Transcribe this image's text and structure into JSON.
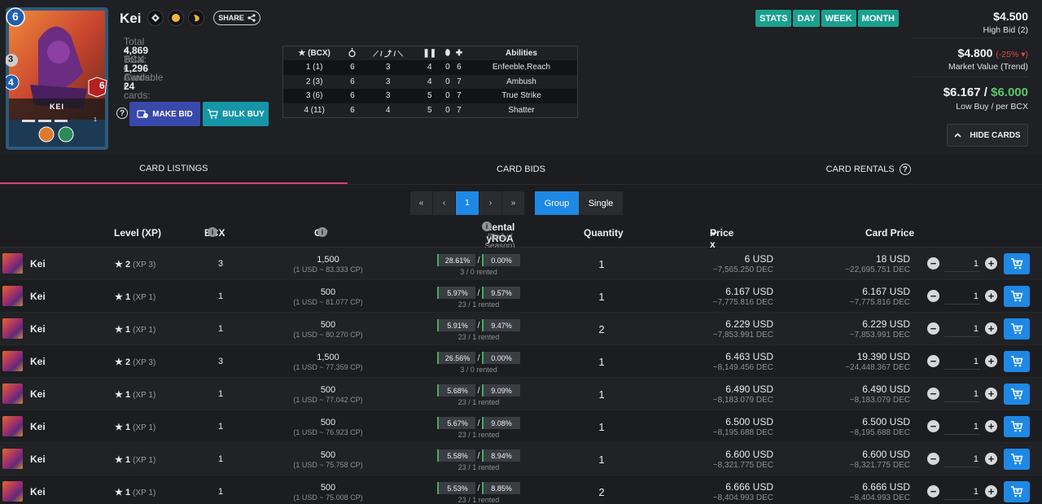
{
  "card": {
    "name": "Kei",
    "image_label": "KEI",
    "mana": "6",
    "armor": "3",
    "attack": "4",
    "health": "6",
    "level": "1"
  },
  "header": {
    "share_label": "SHARE",
    "stats": [
      {
        "label": "Total BCX:",
        "value": "4,869"
      },
      {
        "label": "Total Cards:",
        "value": "1,296"
      },
      {
        "label": "Available cards:",
        "value": "24"
      }
    ],
    "make_bid_label": "MAKE BID",
    "bulk_buy_label": "BULK BUY"
  },
  "level_table": {
    "headers": [
      "(BCX)",
      "",
      "",
      "",
      "",
      "",
      "Abilities"
    ],
    "rows": [
      [
        "1 (1)",
        "6",
        "3",
        "4",
        "0",
        "6",
        "Enfeeble,Reach"
      ],
      [
        "2 (3)",
        "6",
        "3",
        "4",
        "0",
        "7",
        "Ambush"
      ],
      [
        "3 (6)",
        "6",
        "3",
        "5",
        "0",
        "7",
        "True Strike"
      ],
      [
        "4 (11)",
        "6",
        "4",
        "5",
        "0",
        "7",
        "Shatter"
      ]
    ]
  },
  "period_buttons": [
    "STATS",
    "DAY",
    "WEEK",
    "MONTH"
  ],
  "prices": {
    "high_bid": "$4.500",
    "high_bid_label": "High Bid (2)",
    "market_value": "$4.800",
    "market_change": "(-25%",
    "market_label": "Market Value (Trend)",
    "low_buy": "$6.167",
    "per_bcx": "$6.000",
    "low_buy_label": "Low Buy / per BCX",
    "hide_cards_label": "HIDE CARDS"
  },
  "tabs": [
    "CARD LISTINGS",
    "CARD BIDS",
    "CARD RENTALS"
  ],
  "pager": {
    "first": "«",
    "prev": "‹",
    "current": "1",
    "next": "›",
    "last": "»"
  },
  "view_toggle": [
    "Group",
    "Single"
  ],
  "columns": {
    "level": "Level (XP)",
    "bcx": "BCX",
    "cp": "CP",
    "rental": "Rental yROA",
    "rental_sub": "(Daily / Season)",
    "quantity": "Quantity",
    "price_bcx": "Price x BCX",
    "card_price": "Card Price"
  },
  "listings": [
    {
      "name": "Kei",
      "level": "2",
      "xp": "(XP 3)",
      "bcx": "3",
      "cp": "1,500",
      "cp_rate": "(1 USD ~ 83.333 CP)",
      "daily": "28.61%",
      "season": "0.00%",
      "rented": "3 / 0 rented",
      "qty": "1",
      "price": "6 USD",
      "price_dec": "~7,565.250 DEC",
      "card_price": "18 USD",
      "card_dec": "~22,695.751 DEC",
      "buy_qty": "1"
    },
    {
      "name": "Kei",
      "level": "1",
      "xp": "(XP 1)",
      "bcx": "1",
      "cp": "500",
      "cp_rate": "(1 USD ~ 81.077 CP)",
      "daily": "5.97%",
      "season": "9.57%",
      "rented": "23 / 1 rented",
      "qty": "1",
      "price": "6.167 USD",
      "price_dec": "~7,775.816 DEC",
      "card_price": "6.167 USD",
      "card_dec": "~7,775.816 DEC",
      "buy_qty": "1"
    },
    {
      "name": "Kei",
      "level": "1",
      "xp": "(XP 1)",
      "bcx": "1",
      "cp": "500",
      "cp_rate": "(1 USD ~ 80.270 CP)",
      "daily": "5.91%",
      "season": "9.47%",
      "rented": "23 / 1 rented",
      "qty": "2",
      "price": "6.229 USD",
      "price_dec": "~7,853.991 DEC",
      "card_price": "6.229 USD",
      "card_dec": "~7,853.991 DEC",
      "buy_qty": "1"
    },
    {
      "name": "Kei",
      "level": "2",
      "xp": "(XP 3)",
      "bcx": "3",
      "cp": "1,500",
      "cp_rate": "(1 USD ~ 77.359 CP)",
      "daily": "26.56%",
      "season": "0.00%",
      "rented": "3 / 0 rented",
      "qty": "1",
      "price": "6.463 USD",
      "price_dec": "~8,149.456 DEC",
      "card_price": "19.390 USD",
      "card_dec": "~24,448.367 DEC",
      "buy_qty": "1"
    },
    {
      "name": "Kei",
      "level": "1",
      "xp": "(XP 1)",
      "bcx": "1",
      "cp": "500",
      "cp_rate": "(1 USD ~ 77.042 CP)",
      "daily": "5.68%",
      "season": "9.09%",
      "rented": "23 / 1 rented",
      "qty": "1",
      "price": "6.490 USD",
      "price_dec": "~8,183.079 DEC",
      "card_price": "6.490 USD",
      "card_dec": "~8,183.079 DEC",
      "buy_qty": "1"
    },
    {
      "name": "Kei",
      "level": "1",
      "xp": "(XP 1)",
      "bcx": "1",
      "cp": "500",
      "cp_rate": "(1 USD ~ 76.923 CP)",
      "daily": "5.67%",
      "season": "9.08%",
      "rented": "23 / 1 rented",
      "qty": "1",
      "price": "6.500 USD",
      "price_dec": "~8,195.688 DEC",
      "card_price": "6.500 USD",
      "card_dec": "~8,195.688 DEC",
      "buy_qty": "1"
    },
    {
      "name": "Kei",
      "level": "1",
      "xp": "(XP 1)",
      "bcx": "1",
      "cp": "500",
      "cp_rate": "(1 USD ~ 75.758 CP)",
      "daily": "5.58%",
      "season": "8.94%",
      "rented": "23 / 1 rented",
      "qty": "1",
      "price": "6.600 USD",
      "price_dec": "~8,321.775 DEC",
      "card_price": "6.600 USD",
      "card_dec": "~8,321.775 DEC",
      "buy_qty": "1"
    },
    {
      "name": "Kei",
      "level": "1",
      "xp": "(XP 1)",
      "bcx": "1",
      "cp": "500",
      "cp_rate": "(1 USD ~ 75.008 CP)",
      "daily": "5.53%",
      "season": "8.85%",
      "rented": "23 / 1 rented",
      "qty": "2",
      "price": "6.666 USD",
      "price_dec": "~8,404.993 DEC",
      "card_price": "6.666 USD",
      "card_dec": "~8,404.993 DEC",
      "buy_qty": "1"
    }
  ],
  "colors": {
    "background": "#1b1d20",
    "accent_blue": "#1e88e5",
    "teal": "#1aa08e",
    "bid_blue": "#3949ab",
    "tab_underline": "#d43f7a",
    "positive": "#5cc86c",
    "negative": "#e04848"
  }
}
